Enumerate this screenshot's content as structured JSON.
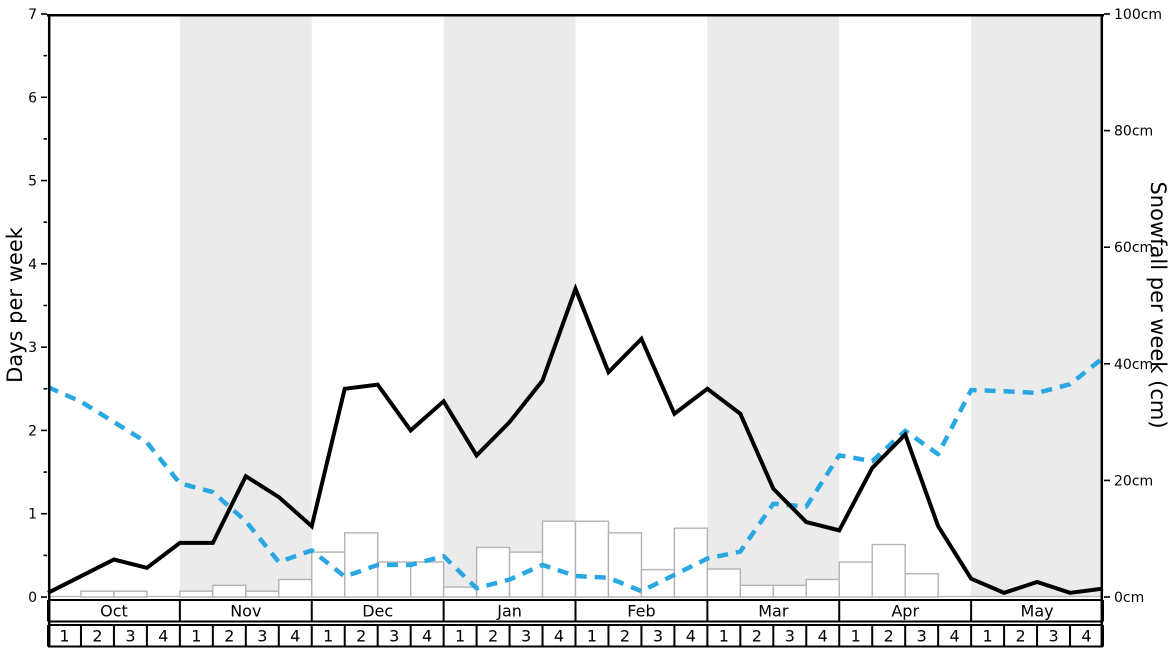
{
  "figure": {
    "left_axis_title": "Days per week",
    "right_axis_title": "Snowfall per week (cm)"
  },
  "chart_data": {
    "type": "composite",
    "x_unit": "weeks of ski season; 32 week cells (8 months x 4 weeks); line points fall on the 33 week boundaries",
    "months": [
      "Oct",
      "Nov",
      "Dec",
      "Jan",
      "Feb",
      "Mar",
      "Apr",
      "May"
    ],
    "week_labels": [
      "1",
      "2",
      "3",
      "4"
    ],
    "shaded_months": [
      "Nov",
      "Jan",
      "Mar",
      "May"
    ],
    "left_axis": {
      "title": "Days per week",
      "min": 0,
      "max": 7,
      "major_step": 1,
      "minor_step": 0.5,
      "tick_labels": [
        "0",
        "1",
        "2",
        "3",
        "4",
        "5",
        "6",
        "7"
      ]
    },
    "right_axis": {
      "title": "Snowfall per week (cm)",
      "min": 0,
      "max": 100,
      "major_step": 20,
      "tick_labels": [
        "0cm",
        "20cm",
        "40cm",
        "60cm",
        "80cm",
        "100cm"
      ]
    },
    "series": [
      {
        "name": "black-solid-line-days-per-week",
        "type": "line",
        "line_style": "solid",
        "color": "#000000",
        "axis": "left",
        "values": [
          0.05,
          0.25,
          0.45,
          0.35,
          0.65,
          0.65,
          1.45,
          1.2,
          0.85,
          2.5,
          2.55,
          2.0,
          2.35,
          1.7,
          2.1,
          2.6,
          3.7,
          2.7,
          3.1,
          2.2,
          2.5,
          2.2,
          1.3,
          0.9,
          0.8,
          1.55,
          1.95,
          0.85,
          0.22,
          0.05,
          0.18,
          0.05,
          0.1
        ]
      },
      {
        "name": "blue-dashed-line-cm",
        "type": "line",
        "line_style": "dashed",
        "color": "#28A7E2",
        "axis": "right",
        "values": [
          36,
          33.5,
          30,
          26.5,
          19.5,
          18,
          13,
          6,
          8,
          3.5,
          5.5,
          5.5,
          7,
          1.5,
          3,
          5.5,
          3.6,
          3.3,
          1,
          3.8,
          6.6,
          7.8,
          16,
          15.5,
          24.3,
          23.3,
          28.5,
          24.5,
          35.5,
          35.3,
          35,
          36.5,
          41
        ]
      },
      {
        "name": "weekly-snowfall-bars-cm",
        "type": "bar",
        "axis": "right",
        "fill": "#FFFFFF",
        "border": "#B3B3B3",
        "values": [
          0,
          1,
          1,
          0,
          1,
          2,
          1,
          3,
          7.7,
          11,
          6,
          6,
          1.7,
          8.5,
          7.7,
          13,
          13,
          11,
          4.7,
          11.8,
          4.8,
          2,
          2,
          3,
          6,
          9,
          4,
          0,
          0,
          0,
          0,
          0
        ]
      }
    ],
    "band_color": "#EBEBEB",
    "axis_title_color": "#757575",
    "grid": false,
    "legend": false
  }
}
